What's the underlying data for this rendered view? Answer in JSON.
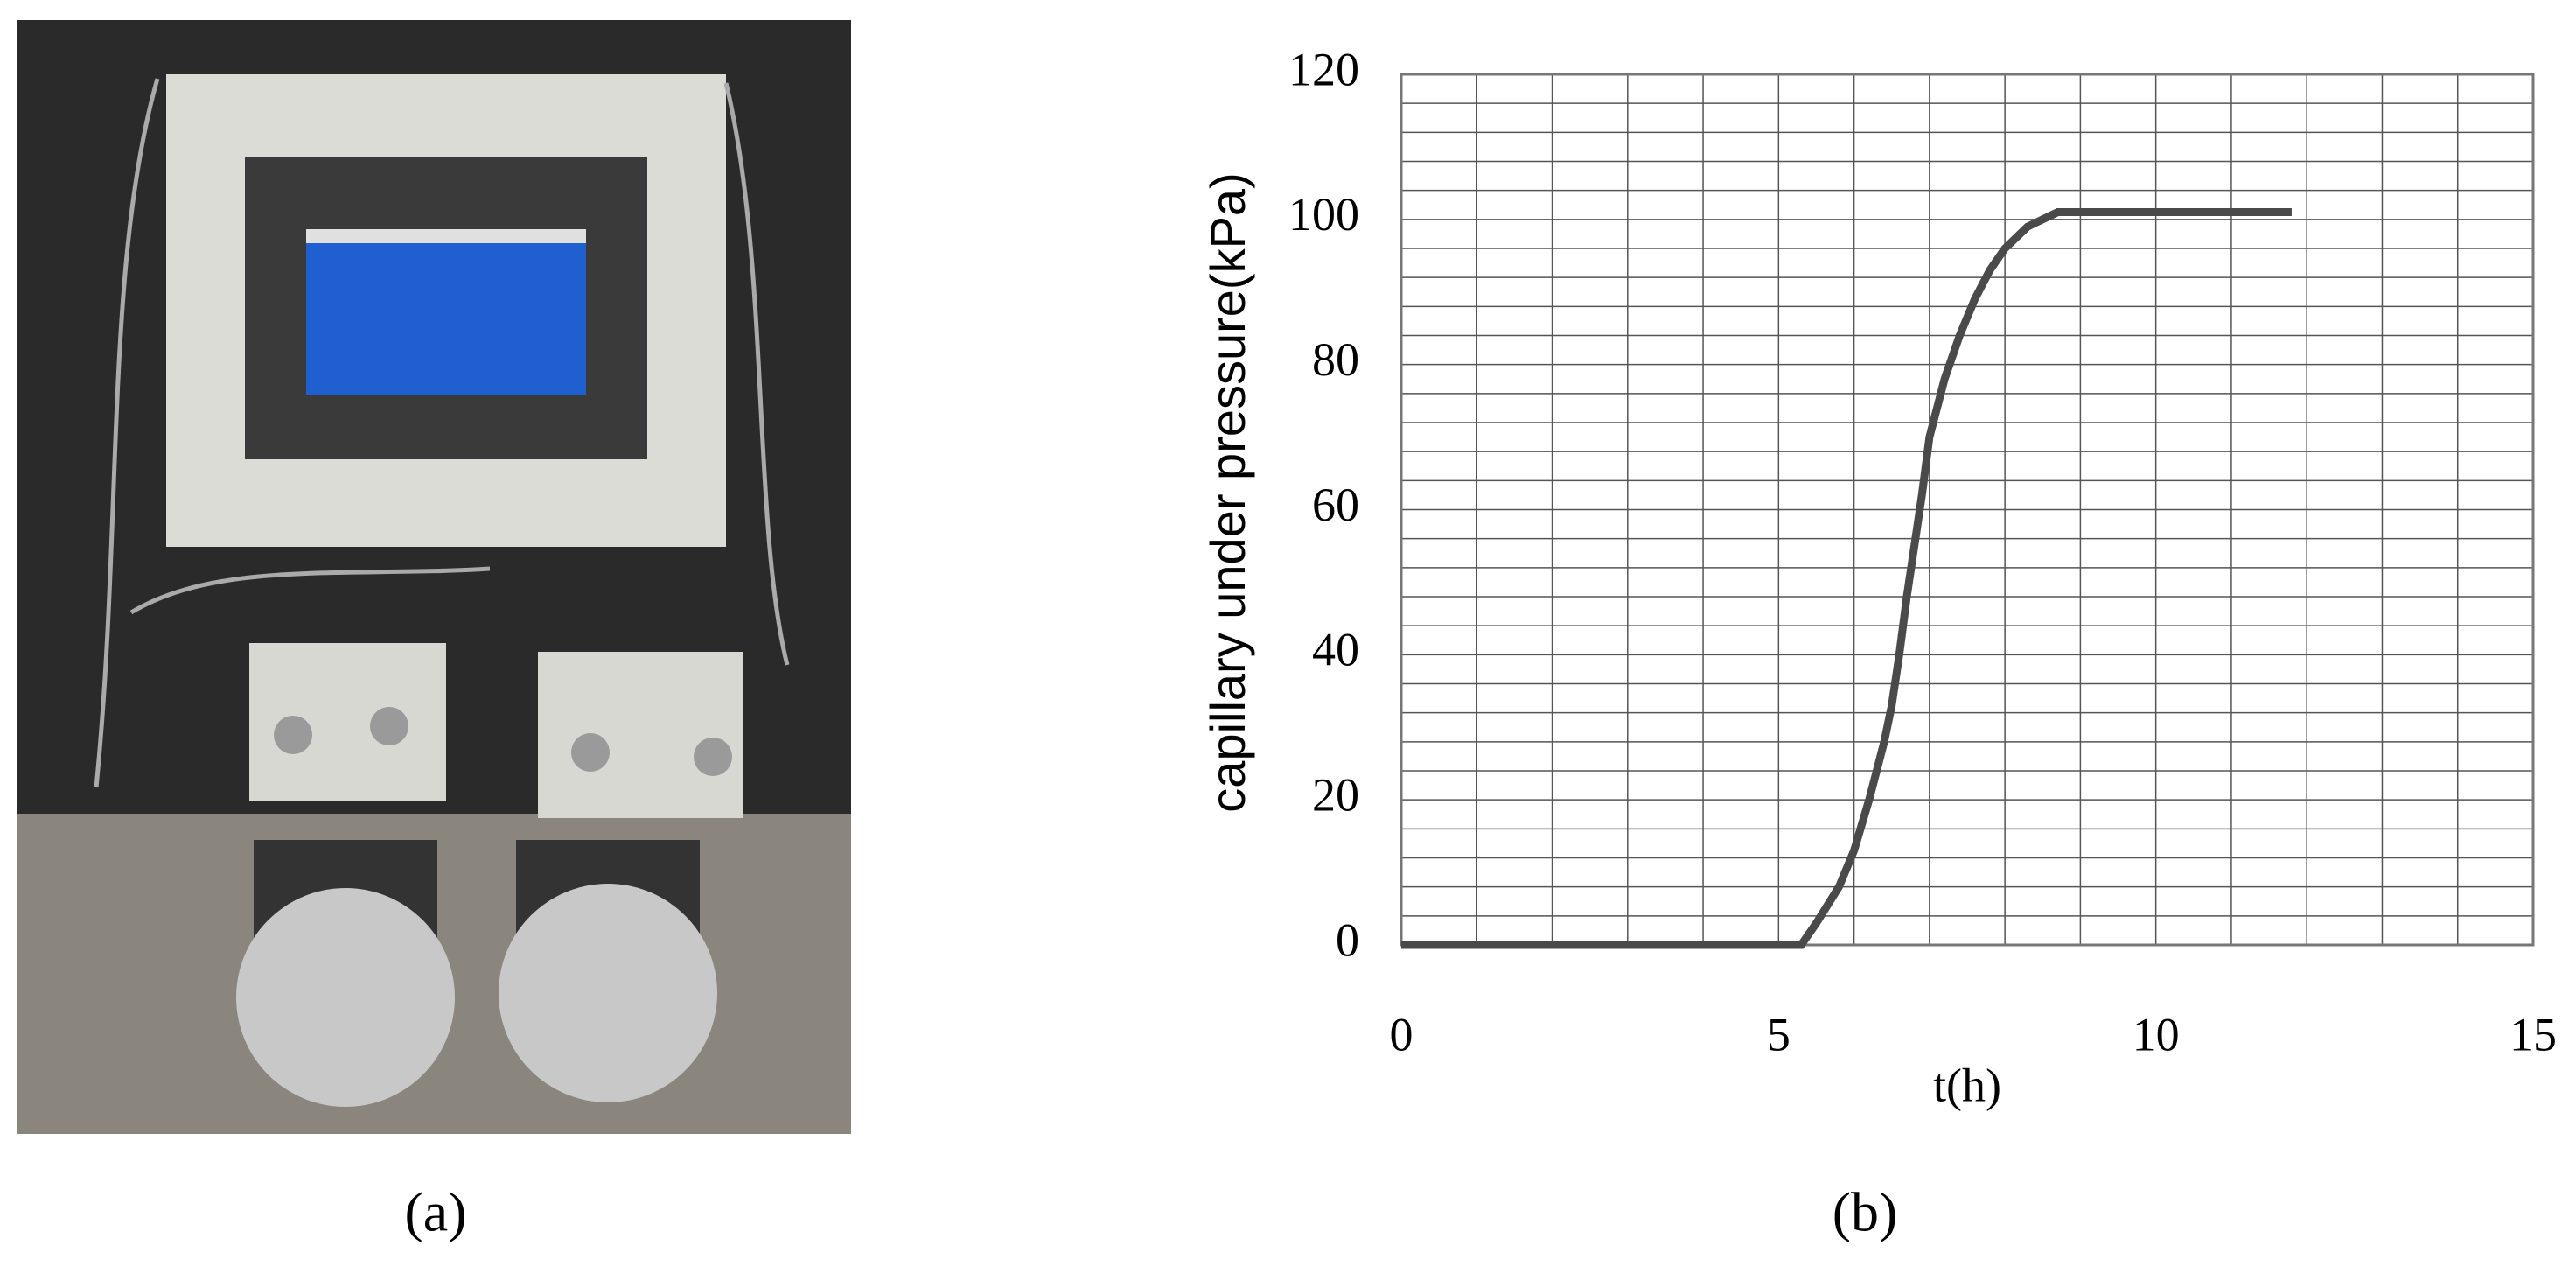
{
  "panel_labels": [
    "(a)",
    "(b)"
  ],
  "chart_data": {
    "type": "line",
    "x_label": "t(h)",
    "y_label": "capillary under pressure(kPa)",
    "xlim": [
      0,
      15
    ],
    "xticks": [
      0,
      5,
      10,
      15
    ],
    "ylim": [
      0,
      120
    ],
    "yticks": [
      0,
      20,
      40,
      60,
      80,
      100,
      120
    ],
    "grid": true,
    "series": [
      {
        "color": "#4a4a4a",
        "x": [
          0,
          5.3,
          5.5,
          5.8,
          6.0,
          6.2,
          6.4,
          6.5,
          6.6,
          6.7,
          6.8,
          6.9,
          7.0,
          7.2,
          7.4,
          7.6,
          7.8,
          8.0,
          8.3,
          8.7,
          10,
          11.8
        ],
        "values": [
          0,
          0,
          3,
          8,
          13,
          20,
          28,
          33,
          40,
          48,
          55,
          62,
          70,
          78,
          84,
          89,
          93,
          96,
          99,
          101,
          101,
          101
        ]
      }
    ]
  }
}
